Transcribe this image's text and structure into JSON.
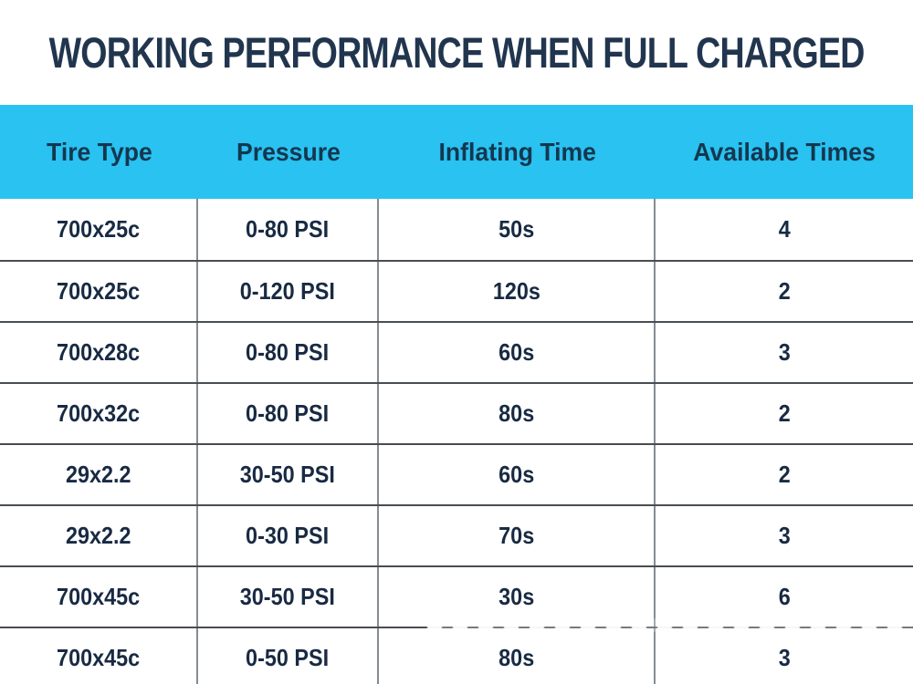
{
  "chart_data": {
    "type": "table",
    "title": "WORKING PERFORMANCE WHEN FULL CHARGED",
    "columns": [
      "Tire Type",
      "Pressure",
      "Inflating Time",
      "Available Times"
    ],
    "rows": [
      [
        "700x25c",
        "0-80 PSI",
        "50s",
        "4"
      ],
      [
        "700x25c",
        "0-120 PSI",
        "120s",
        "2"
      ],
      [
        "700x28c",
        "0-80 PSI",
        "60s",
        "3"
      ],
      [
        "700x32c",
        "0-80 PSI",
        "80s",
        "2"
      ],
      [
        "29x2.2",
        "30-50 PSI",
        "60s",
        "2"
      ],
      [
        "29x2.2",
        "0-30 PSI",
        "70s",
        "3"
      ],
      [
        "700x45c",
        "30-50 PSI",
        "30s",
        "6"
      ],
      [
        "700x45c",
        "0-50 PSI",
        "80s",
        "3"
      ]
    ],
    "layout": {
      "header_position": "top",
      "grid": "horizontal rules between rows, vertical rules between columns, last row clipped at bottom edge"
    },
    "colors": {
      "header_bg": "#29C2F1",
      "title_text": "#21354E",
      "header_text": "#14374F",
      "cell_text": "#182A43",
      "row_border": "#484D52",
      "column_border": "#848C92",
      "page_bg": "#FFFFFF"
    }
  }
}
